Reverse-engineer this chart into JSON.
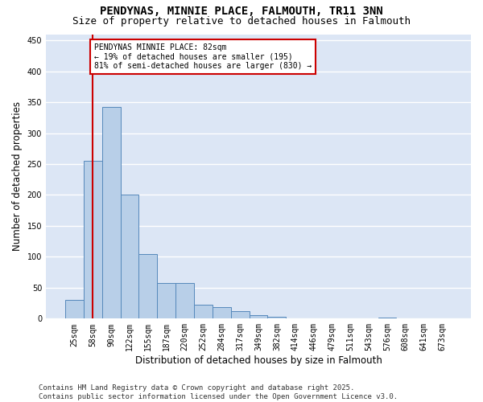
{
  "title": "PENDYNAS, MINNIE PLACE, FALMOUTH, TR11 3NN",
  "subtitle": "Size of property relative to detached houses in Falmouth",
  "xlabel": "Distribution of detached houses by size in Falmouth",
  "ylabel": "Number of detached properties",
  "categories": [
    "25sqm",
    "58sqm",
    "90sqm",
    "122sqm",
    "155sqm",
    "187sqm",
    "220sqm",
    "252sqm",
    "284sqm",
    "317sqm",
    "349sqm",
    "382sqm",
    "414sqm",
    "446sqm",
    "479sqm",
    "511sqm",
    "543sqm",
    "576sqm",
    "608sqm",
    "641sqm",
    "673sqm"
  ],
  "values": [
    30,
    255,
    342,
    200,
    105,
    57,
    57,
    22,
    18,
    12,
    5,
    3,
    1,
    0,
    0,
    0,
    0,
    2,
    0,
    0,
    0
  ],
  "bar_color": "#b8cfe8",
  "bar_edge_color": "#5588bb",
  "background_color": "#dce6f5",
  "grid_color": "#ffffff",
  "vline_x": 1.0,
  "vline_color": "#cc0000",
  "annotation_text": "PENDYNAS MINNIE PLACE: 82sqm\n← 19% of detached houses are smaller (195)\n81% of semi-detached houses are larger (830) →",
  "annotation_box_facecolor": "#ffffff",
  "annotation_box_edgecolor": "#cc0000",
  "footnote": "Contains HM Land Registry data © Crown copyright and database right 2025.\nContains public sector information licensed under the Open Government Licence v3.0.",
  "ylim": [
    0,
    460
  ],
  "yticks": [
    0,
    50,
    100,
    150,
    200,
    250,
    300,
    350,
    400,
    450
  ],
  "title_fontsize": 10,
  "subtitle_fontsize": 9,
  "axis_label_fontsize": 8.5,
  "tick_fontsize": 7,
  "footnote_fontsize": 6.5,
  "fig_facecolor": "#ffffff"
}
